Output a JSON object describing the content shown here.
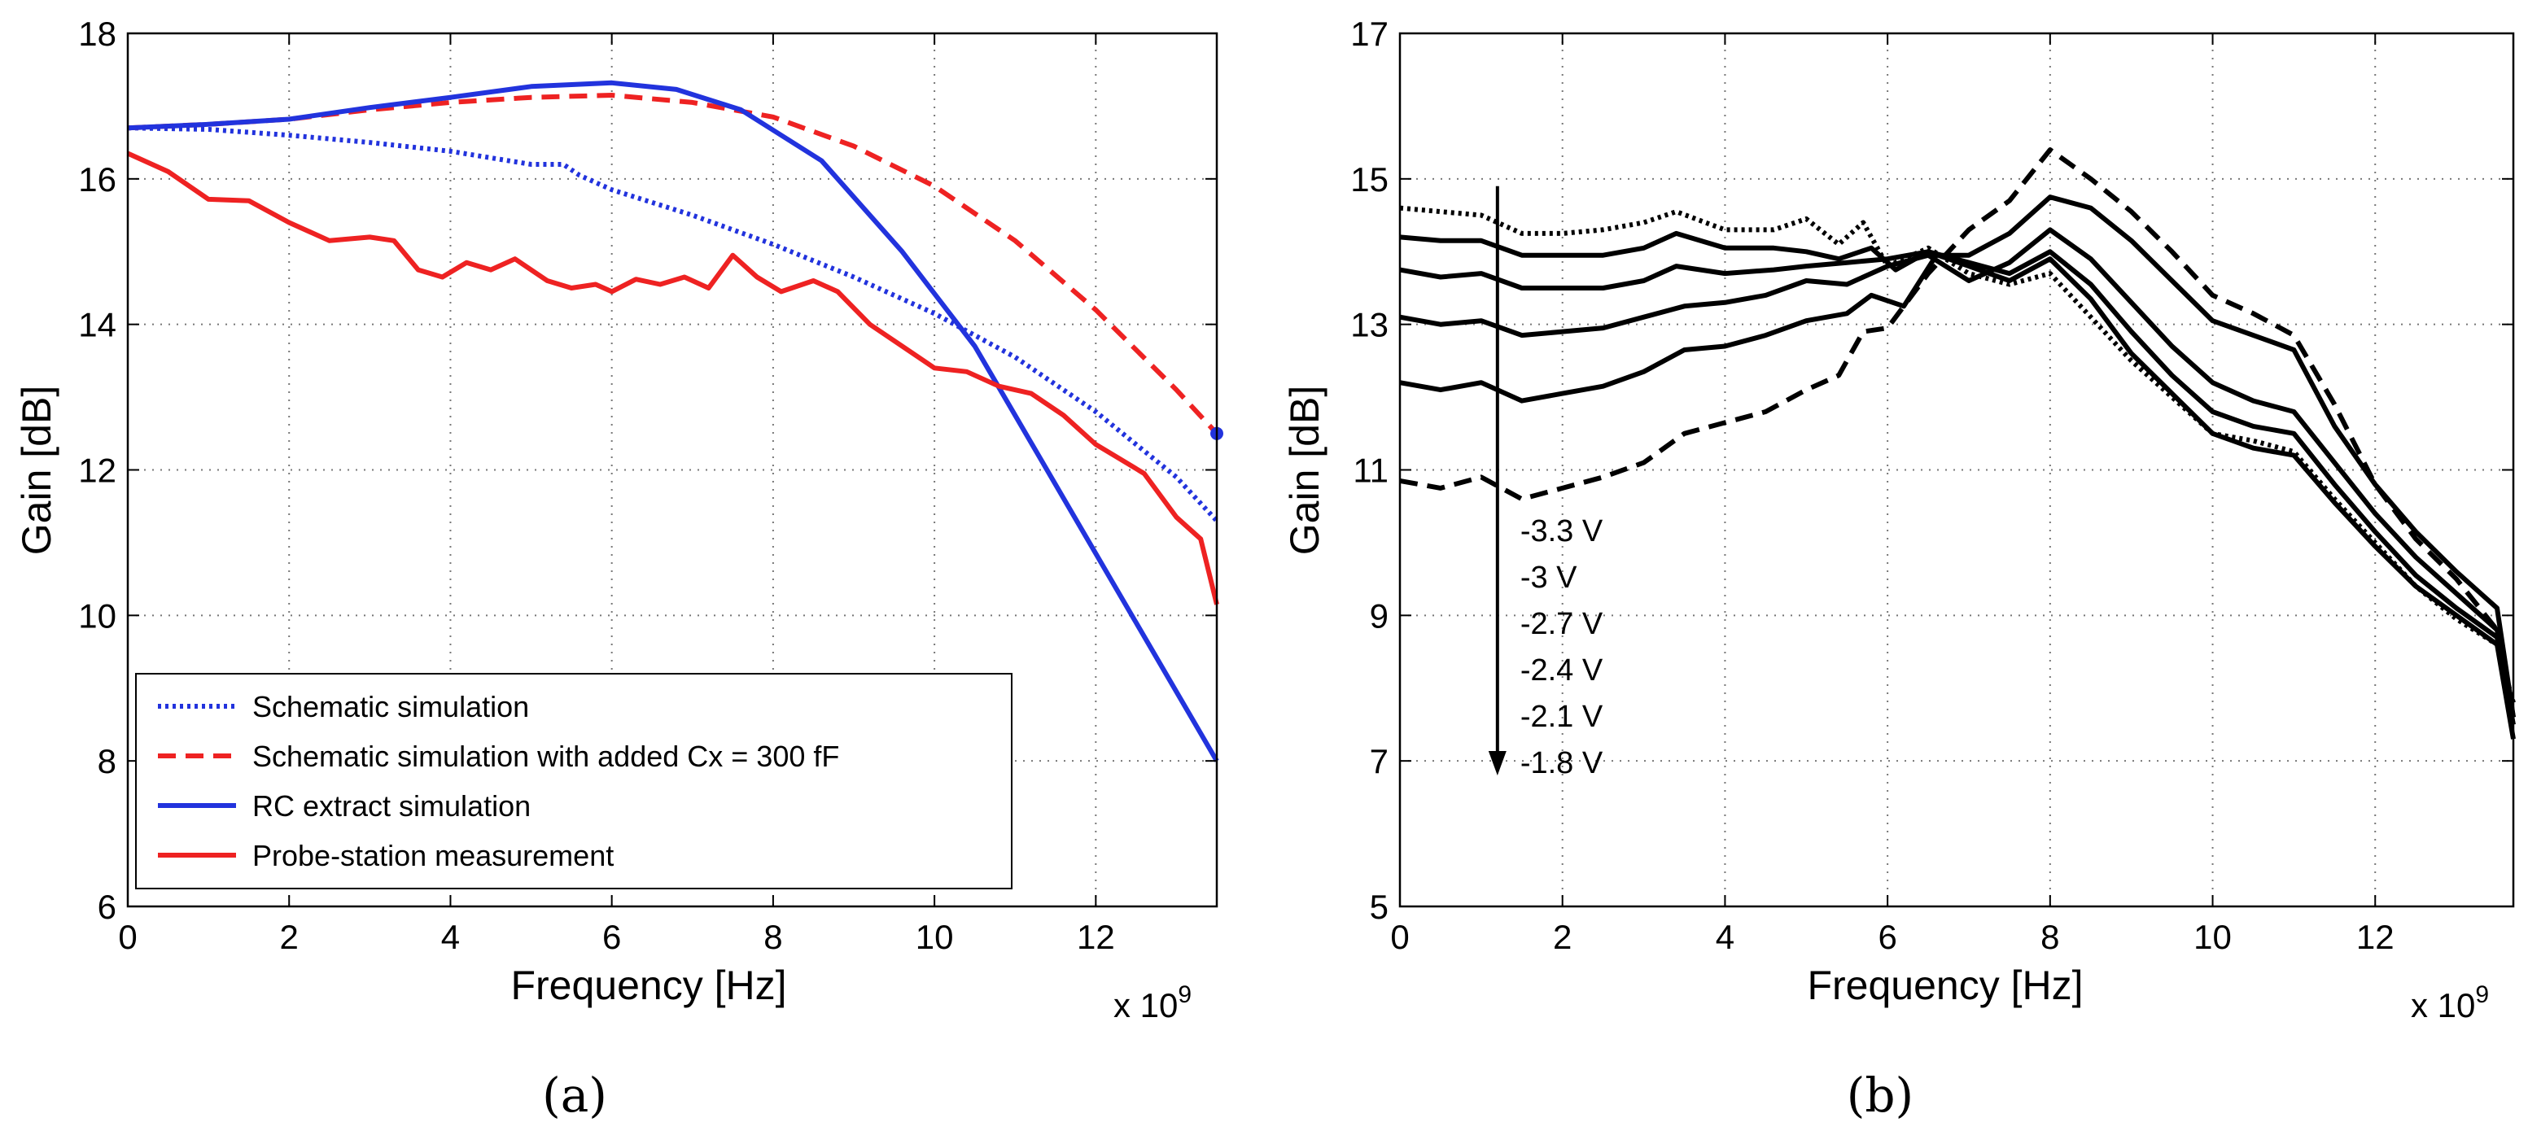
{
  "figure": {
    "panel_a": "(a)",
    "panel_b": "(b)"
  },
  "chart_data": [
    {
      "type": "line",
      "title": "",
      "xlabel": "Frequency [Hz]",
      "ylabel": "Gain [dB]",
      "x_multiplier": "x 10",
      "x_exponent": "9",
      "xlim": [
        0,
        13.5
      ],
      "ylim": [
        6,
        18
      ],
      "xticks": [
        0,
        2,
        4,
        6,
        8,
        10,
        12
      ],
      "yticks": [
        6,
        8,
        10,
        12,
        14,
        16,
        18
      ],
      "grid": true,
      "legend_position": "bottom-left",
      "series": [
        {
          "name": "Schematic simulation",
          "color": "#2233dd",
          "style": "dotted",
          "x": [
            0,
            1,
            2,
            3,
            4,
            5,
            5.4,
            5.6,
            6,
            7,
            8,
            9,
            10,
            11,
            12,
            13,
            13.5
          ],
          "y": [
            16.7,
            16.68,
            16.6,
            16.5,
            16.38,
            16.2,
            16.2,
            16.05,
            15.85,
            15.5,
            15.1,
            14.65,
            14.15,
            13.55,
            12.8,
            11.9,
            11.3
          ]
        },
        {
          "name": "Schematic simulation with added Cx = 300 fF",
          "color": "#ee2222",
          "style": "dashed",
          "x": [
            0,
            1,
            2,
            3,
            4,
            5,
            6,
            7,
            8,
            9,
            10,
            11,
            12,
            13,
            13.5
          ],
          "y": [
            16.7,
            16.75,
            16.82,
            16.95,
            17.05,
            17.12,
            17.15,
            17.05,
            16.85,
            16.45,
            15.9,
            15.15,
            14.2,
            13.1,
            12.5
          ]
        },
        {
          "name": "RC extract simulation",
          "color": "#2233dd",
          "style": "solid",
          "x": [
            0,
            1,
            2,
            3,
            4,
            5,
            6,
            6.8,
            7.6,
            8.6,
            9.6,
            10.5,
            11.5,
            12.5,
            13.5
          ],
          "y": [
            16.7,
            16.75,
            16.82,
            16.98,
            17.12,
            17.27,
            17.32,
            17.23,
            16.95,
            16.25,
            15.0,
            13.7,
            11.8,
            9.9,
            8.0
          ]
        },
        {
          "name": "Probe-station measurement",
          "color": "#ee2222",
          "style": "solid",
          "x": [
            0,
            0.5,
            1,
            1.5,
            2,
            2.5,
            3,
            3.3,
            3.6,
            3.9,
            4.2,
            4.5,
            4.8,
            5.2,
            5.5,
            5.8,
            6,
            6.3,
            6.6,
            6.9,
            7.2,
            7.5,
            7.8,
            8.1,
            8.5,
            8.8,
            9.2,
            9.6,
            10,
            10.4,
            10.8,
            11.2,
            11.6,
            12,
            12.3,
            12.6,
            13,
            13.3,
            13.5
          ],
          "y": [
            16.35,
            16.1,
            15.72,
            15.7,
            15.4,
            15.15,
            15.2,
            15.15,
            14.75,
            14.65,
            14.85,
            14.75,
            14.9,
            14.6,
            14.5,
            14.55,
            14.45,
            14.62,
            14.55,
            14.65,
            14.5,
            14.95,
            14.65,
            14.45,
            14.6,
            14.45,
            14.0,
            13.7,
            13.4,
            13.35,
            13.15,
            13.05,
            12.75,
            12.35,
            12.15,
            11.95,
            11.35,
            11.05,
            10.15
          ]
        }
      ],
      "marker": {
        "x": 13.5,
        "y": 12.5,
        "color": "#2233dd"
      }
    },
    {
      "type": "line",
      "title": "",
      "xlabel": "Frequency [Hz]",
      "ylabel": "Gain [dB]",
      "x_multiplier": "x 10",
      "x_exponent": "9",
      "xlim": [
        0,
        13.7
      ],
      "ylim": [
        5,
        17
      ],
      "xticks": [
        0,
        2,
        4,
        6,
        8,
        10,
        12
      ],
      "yticks": [
        5,
        7,
        9,
        11,
        13,
        15,
        17
      ],
      "grid": true,
      "annotation": {
        "arrow_x": 1.2,
        "arrow_from_y": 14.9,
        "arrow_to_y": 6.8,
        "labels": [
          "-3.3 V",
          "-3 V",
          "-2.7 V",
          "-2.4 V",
          "-2.1 V",
          "-1.8 V"
        ]
      },
      "series": [
        {
          "name": "-3.3 V",
          "color": "#000000",
          "style": "dotted",
          "x": [
            0,
            0.5,
            1,
            1.5,
            2,
            2.5,
            3,
            3.4,
            4,
            4.6,
            5,
            5.4,
            5.7,
            6,
            6.5,
            7,
            7.5,
            8,
            8.5,
            9,
            9.5,
            10,
            10.5,
            11,
            11.5,
            12,
            12.5,
            13,
            13.5,
            13.7
          ],
          "y": [
            14.6,
            14.55,
            14.5,
            14.25,
            14.25,
            14.3,
            14.4,
            14.55,
            14.3,
            14.3,
            14.45,
            14.1,
            14.4,
            13.8,
            14.05,
            13.7,
            13.55,
            13.7,
            13.1,
            12.5,
            12.0,
            11.5,
            11.4,
            11.25,
            10.6,
            10.0,
            9.4,
            8.95,
            8.6,
            7.8
          ]
        },
        {
          "name": "-3 V",
          "color": "#000000",
          "style": "solid",
          "x": [
            0,
            0.5,
            1,
            1.5,
            2,
            2.5,
            3,
            3.4,
            4,
            4.6,
            5,
            5.4,
            5.8,
            6.1,
            6.5,
            7,
            7.5,
            8,
            8.5,
            9,
            9.5,
            10,
            10.5,
            11,
            11.5,
            12,
            12.5,
            13,
            13.5,
            13.7
          ],
          "y": [
            14.2,
            14.15,
            14.15,
            13.95,
            13.95,
            13.95,
            14.05,
            14.25,
            14.05,
            14.05,
            14.0,
            13.9,
            14.05,
            13.75,
            14.0,
            13.8,
            13.6,
            13.9,
            13.35,
            12.6,
            12.05,
            11.5,
            11.3,
            11.2,
            10.55,
            9.95,
            9.4,
            9.0,
            8.6,
            7.3
          ]
        },
        {
          "name": "-2.7 V",
          "color": "#000000",
          "style": "solid",
          "x": [
            0,
            0.5,
            1,
            1.5,
            2,
            2.5,
            3,
            3.4,
            4,
            4.6,
            5,
            5.5,
            6,
            6.5,
            7,
            7.5,
            8,
            8.5,
            9,
            9.5,
            10,
            10.5,
            11,
            11.5,
            12,
            12.5,
            13,
            13.5,
            13.7
          ],
          "y": [
            13.75,
            13.65,
            13.7,
            13.5,
            13.5,
            13.5,
            13.6,
            13.8,
            13.7,
            13.75,
            13.8,
            13.85,
            13.9,
            14.0,
            13.85,
            13.7,
            14.0,
            13.55,
            12.9,
            12.3,
            11.8,
            11.6,
            11.5,
            10.8,
            10.15,
            9.55,
            9.1,
            8.7,
            7.5
          ]
        },
        {
          "name": "-2.4 V",
          "color": "#000000",
          "style": "solid",
          "x": [
            0,
            0.5,
            1,
            1.5,
            2,
            2.5,
            3,
            3.5,
            4,
            4.5,
            5,
            5.5,
            6,
            6.5,
            7,
            7.5,
            8,
            8.5,
            9,
            9.5,
            10,
            10.5,
            11,
            11.5,
            12,
            12.5,
            13,
            13.5,
            13.7
          ],
          "y": [
            13.1,
            13.0,
            13.05,
            12.85,
            12.9,
            12.95,
            13.1,
            13.25,
            13.3,
            13.4,
            13.6,
            13.55,
            13.8,
            13.95,
            13.6,
            13.85,
            14.3,
            13.9,
            13.3,
            12.7,
            12.2,
            11.95,
            11.8,
            11.1,
            10.4,
            9.8,
            9.3,
            8.8,
            7.6
          ]
        },
        {
          "name": "-2.1 V",
          "color": "#000000",
          "style": "solid",
          "x": [
            0,
            0.5,
            1,
            1.5,
            2,
            2.5,
            3,
            3.5,
            4,
            4.5,
            5,
            5.5,
            5.8,
            6.2,
            6.6,
            7,
            7.5,
            8,
            8.5,
            9,
            9.5,
            10,
            10.5,
            11,
            11.5,
            12,
            12.5,
            13,
            13.5,
            13.7
          ],
          "y": [
            12.2,
            12.1,
            12.2,
            11.95,
            12.05,
            12.15,
            12.35,
            12.65,
            12.7,
            12.85,
            13.05,
            13.15,
            13.4,
            13.25,
            13.95,
            13.95,
            14.25,
            14.75,
            14.6,
            14.15,
            13.6,
            13.05,
            12.85,
            12.65,
            11.6,
            10.8,
            10.15,
            9.6,
            9.1,
            7.6
          ]
        },
        {
          "name": "-1.8 V",
          "color": "#000000",
          "style": "dashed",
          "x": [
            0,
            0.5,
            1,
            1.5,
            2,
            2.5,
            3,
            3.5,
            4,
            4.5,
            5,
            5.4,
            5.7,
            6,
            6.5,
            7,
            7.5,
            8,
            8.5,
            9,
            9.5,
            10,
            10.5,
            11,
            11.5,
            12,
            12.5,
            13,
            13.5,
            13.7
          ],
          "y": [
            10.85,
            10.75,
            10.9,
            10.6,
            10.75,
            10.9,
            11.1,
            11.5,
            11.65,
            11.8,
            12.1,
            12.3,
            12.9,
            12.95,
            13.7,
            14.3,
            14.7,
            15.4,
            15.0,
            14.55,
            14.0,
            13.4,
            13.15,
            12.85,
            11.9,
            10.8,
            10.05,
            9.5,
            8.8,
            7.6
          ]
        }
      ]
    }
  ]
}
